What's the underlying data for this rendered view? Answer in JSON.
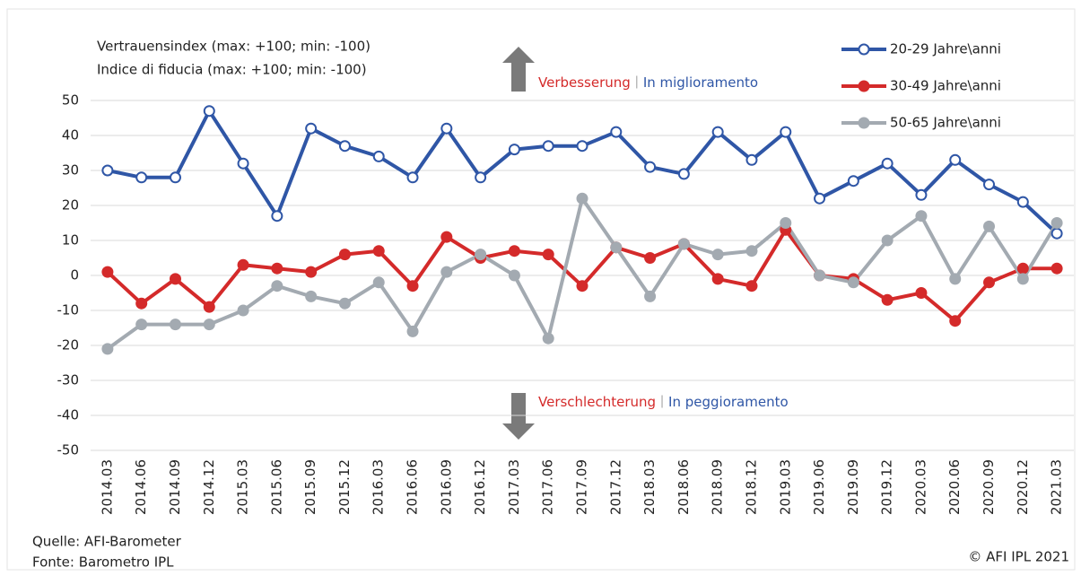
{
  "chart_data": {
    "type": "line",
    "title": [
      "Vertrauensindex (max: +100; min: -100)",
      "Indice di fiducia (max: +100; min: -100)"
    ],
    "annotations": [
      {
        "de": "Verbesserung",
        "it": "In miglioramento"
      },
      {
        "de": "Verschlechterung",
        "it": "In peggioramento"
      }
    ],
    "source": [
      "Quelle: AFI-Barometer",
      "Fonte: Barometro IPL"
    ],
    "copyright": "© AFI IPL 2021",
    "categories": [
      "2014.03",
      "2014.06",
      "2014.09",
      "2014.12",
      "2015.03",
      "2015.06",
      "2015.09",
      "2015.12",
      "2016.03",
      "2016.06",
      "2016.09",
      "2016.12",
      "2017.03",
      "2017.06",
      "2017.09",
      "2017.12",
      "2018.03",
      "2018.06",
      "2018.09",
      "2018.12",
      "2019.03",
      "2019.06",
      "2019.09",
      "2019.12",
      "2020.03",
      "2020.06",
      "2020.09",
      "2020.12",
      "2021.03"
    ],
    "series": [
      {
        "name": "20-29 Jahre\\anni",
        "color": "#2f56a6",
        "marker": "open",
        "values": [
          30,
          28,
          28,
          47,
          32,
          17,
          42,
          37,
          34,
          28,
          42,
          28,
          36,
          37,
          37,
          41,
          31,
          29,
          41,
          33,
          41,
          22,
          27,
          32,
          23,
          33,
          26,
          21,
          12
        ]
      },
      {
        "name": "30-49 Jahre\\anni",
        "color": "#d42a2a",
        "marker": "filled",
        "values": [
          1,
          -8,
          -1,
          -9,
          3,
          2,
          1,
          6,
          7,
          -3,
          11,
          5,
          7,
          6,
          -3,
          8,
          5,
          9,
          -1,
          -3,
          13,
          0,
          -1,
          -7,
          -5,
          -13,
          -2,
          2,
          2
        ]
      },
      {
        "name": "50-65 Jahre\\anni",
        "color": "#a3aab1",
        "marker": "filled",
        "values": [
          -21,
          -14,
          -14,
          -14,
          -10,
          -3,
          -6,
          -8,
          -2,
          -16,
          1,
          6,
          0,
          -18,
          22,
          8,
          -6,
          9,
          6,
          7,
          15,
          0,
          -2,
          10,
          17,
          -1,
          14,
          -1,
          15
        ]
      }
    ],
    "ylim": [
      -50,
      50
    ],
    "yticks": [
      -50,
      -40,
      -30,
      -20,
      -10,
      0,
      10,
      20,
      30,
      40,
      50
    ],
    "grid": true
  }
}
